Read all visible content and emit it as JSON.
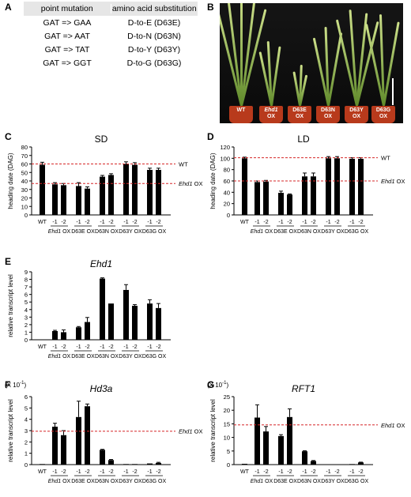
{
  "panels": {
    "a": "A",
    "b": "B",
    "c": "C",
    "d": "D",
    "e": "E",
    "f": "F",
    "g": "G"
  },
  "mutation_table": {
    "headers": [
      "point mutation",
      "amino acid substitution"
    ],
    "rows": [
      [
        "GAT => GAA",
        "D-to-E (D63E)"
      ],
      [
        "GAT => AAT",
        "D-to-N (D63N)"
      ],
      [
        "GAT => TAT",
        "D-to-Y (D63Y)"
      ],
      [
        "GAT => GGT",
        "D-to-G (D63G)"
      ]
    ]
  },
  "photo": {
    "pots": [
      {
        "l1": "WT",
        "l2": ""
      },
      {
        "l1": "Ehd1",
        "l2": "OX"
      },
      {
        "l1": "D63E",
        "l2": "OX"
      },
      {
        "l1": "D63N",
        "l2": "OX"
      },
      {
        "l1": "D63Y",
        "l2": "OX"
      },
      {
        "l1": "D63G",
        "l2": "OX"
      }
    ]
  },
  "colors": {
    "bar": "#000000",
    "refline": "#d62728",
    "pot": "#b83a1c"
  },
  "chart_data": [
    {
      "id": "C",
      "type": "bar",
      "title": "SD",
      "title_italic": false,
      "ylabel": "heading date (DAG)",
      "ylim": [
        0,
        80
      ],
      "yticks": [
        0,
        10,
        20,
        30,
        40,
        50,
        60,
        70,
        80
      ],
      "multiplier": "",
      "categories": [
        "WT",
        "-1",
        "-2",
        "-1",
        "-2",
        "-1",
        "-2",
        "-1",
        "-2",
        "-1",
        "-2"
      ],
      "values": [
        59,
        36,
        35,
        34,
        31,
        45,
        47,
        60,
        59,
        53,
        53
      ],
      "errors": [
        3,
        2,
        2,
        4,
        2,
        1.5,
        1.5,
        2.5,
        2.5,
        2,
        2
      ],
      "groups": [
        "Ehd1 OX",
        "D63E OX",
        "D63N OX",
        "D63Y OX",
        "D63G OX"
      ],
      "refs": [
        {
          "value": 60,
          "label": "WT",
          "italic": false
        },
        {
          "value": 37,
          "label": "Ehd1",
          "suffix": " OX",
          "italic": true
        }
      ]
    },
    {
      "id": "D",
      "type": "bar",
      "title": "LD",
      "title_italic": false,
      "ylabel": "heading date (DAG)",
      "ylim": [
        0,
        120
      ],
      "yticks": [
        0,
        20,
        40,
        60,
        80,
        100,
        120
      ],
      "multiplier": "",
      "categories": [
        "WT",
        "-1",
        "-2",
        "-1",
        "-2",
        "-1",
        "-2",
        "-1",
        "-2",
        "-1",
        "-2"
      ],
      "values": [
        100,
        58,
        59,
        39,
        36,
        68,
        68,
        100,
        100,
        99,
        99
      ],
      "errors": [
        2,
        2,
        2,
        3,
        1,
        6,
        6,
        3,
        3,
        2,
        2
      ],
      "groups": [
        "Ehd1 OX",
        "D63E OX",
        "D63N OX",
        "D63Y OX",
        "D63G OX"
      ],
      "refs": [
        {
          "value": 101,
          "label": "WT",
          "italic": false
        },
        {
          "value": 60,
          "label": "Ehd1",
          "suffix": " OX",
          "italic": true
        }
      ]
    },
    {
      "id": "E",
      "type": "bar",
      "title": "Ehd1",
      "title_italic": true,
      "ylabel": "relative transcript level",
      "ylim": [
        0,
        9
      ],
      "yticks": [
        0,
        1,
        2,
        3,
        4,
        5,
        6,
        7,
        8,
        9
      ],
      "multiplier": "",
      "categories": [
        "WT",
        "-1",
        "-2",
        "-1",
        "-2",
        "-1",
        "-2",
        "-1",
        "-2",
        "-1",
        "-2"
      ],
      "values": [
        0,
        1.15,
        1.0,
        1.65,
        2.35,
        8.1,
        4.8,
        6.6,
        4.5,
        4.8,
        4.2
      ],
      "errors": [
        0,
        0.1,
        0.3,
        0.1,
        0.6,
        0.1,
        0,
        0.7,
        0.15,
        0.5,
        0.6
      ],
      "groups": [
        "Ehd1 OX",
        "D63E OX",
        "D63N OX",
        "D63Y OX",
        "D63G OX"
      ],
      "refs": []
    },
    {
      "id": "F",
      "type": "bar",
      "title": "Hd3a",
      "title_italic": true,
      "ylabel": "relative transcript level",
      "ylim": [
        0,
        6
      ],
      "yticks": [
        0,
        1,
        2,
        3,
        4,
        5,
        6
      ],
      "multiplier": "(X 10",
      "categories": [
        "WT",
        "-1",
        "-2",
        "-1",
        "-2",
        "-1",
        "-2",
        "-1",
        "-2",
        "-1",
        "-2"
      ],
      "values": [
        0.05,
        3.35,
        2.6,
        4.2,
        5.15,
        1.3,
        0.4,
        0.05,
        0.05,
        0.1,
        0.15
      ],
      "errors": [
        0,
        0.3,
        0.4,
        1.4,
        0.2,
        0.05,
        0.05,
        0,
        0,
        0,
        0.05
      ],
      "groups": [
        "Ehd1 OX",
        "D63E OX",
        "D63N OX",
        "D63Y OX",
        "D63G OX"
      ],
      "refs": [
        {
          "value": 2.95,
          "label": "Ehd1",
          "suffix": " OX",
          "italic": true
        }
      ]
    },
    {
      "id": "G",
      "type": "bar",
      "title": "RFT1",
      "title_italic": true,
      "ylabel": "relative transcript level",
      "ylim": [
        0,
        25
      ],
      "yticks": [
        0,
        5,
        10,
        15,
        20,
        25
      ],
      "multiplier": "(X 10",
      "categories": [
        "WT",
        "-1",
        "-2",
        "-1",
        "-2",
        "-1",
        "-2",
        "-1",
        "-2",
        "-1",
        "-2"
      ],
      "values": [
        0.3,
        17.3,
        12.2,
        10.5,
        17.5,
        4.9,
        1.3,
        0.1,
        0.1,
        0.2,
        0.8
      ],
      "errors": [
        0,
        4.7,
        1.8,
        0.5,
        3,
        0.2,
        0.2,
        0,
        0,
        0,
        0.1
      ],
      "groups": [
        "Ehd1 OX",
        "D63E OX",
        "D63N OX",
        "D63Y OX",
        "D63G OX"
      ],
      "refs": [
        {
          "value": 14.6,
          "label": "Ehd1",
          "suffix": " OX",
          "italic": true
        }
      ]
    }
  ]
}
